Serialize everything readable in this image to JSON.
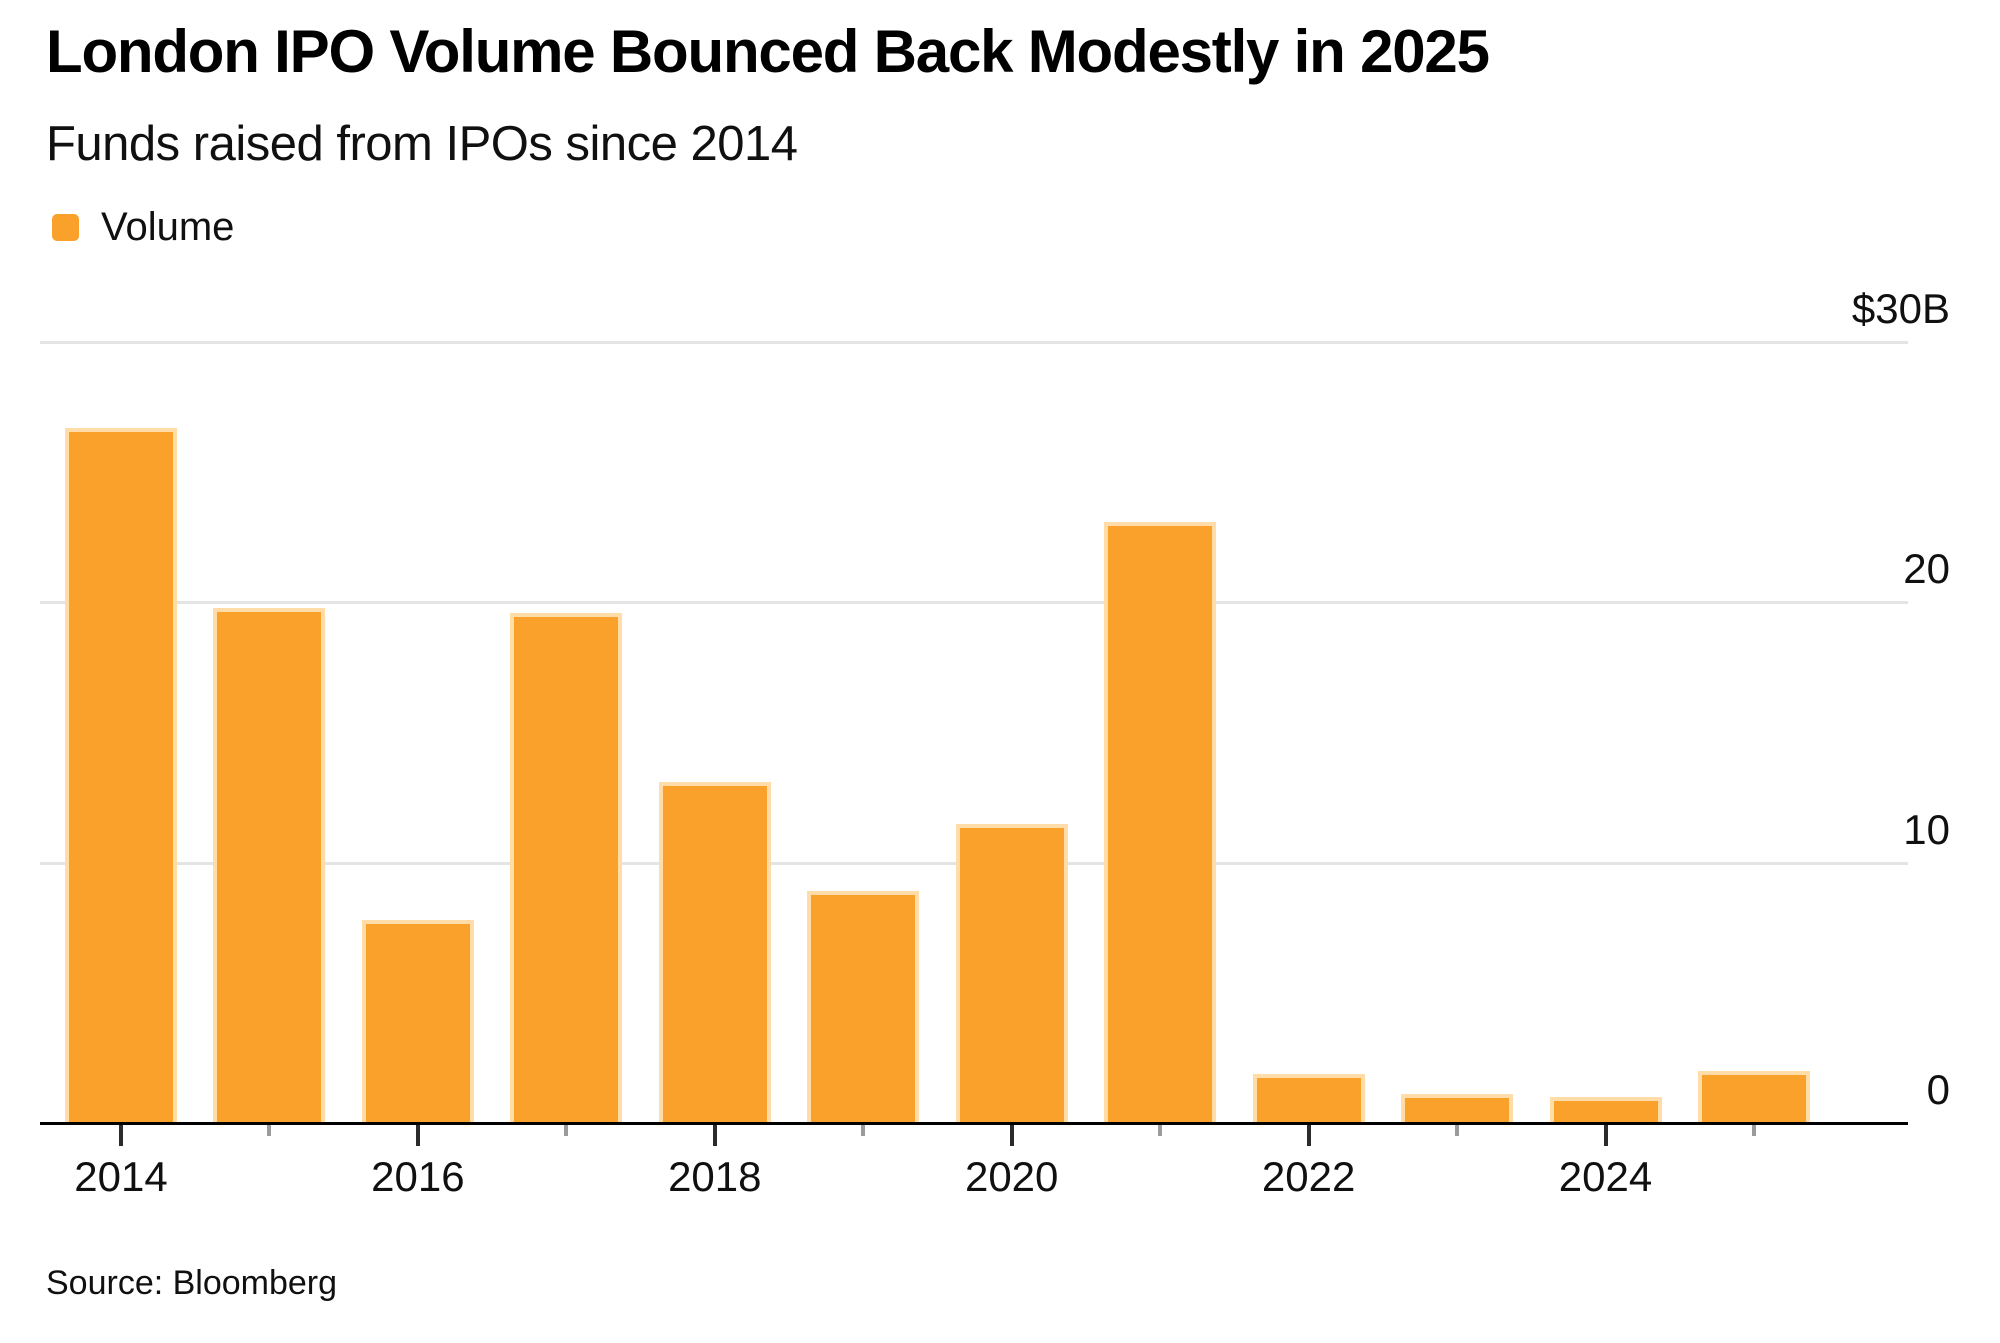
{
  "header": {
    "title": "London IPO Volume Bounced Back Modestly in 2025",
    "subtitle": "Funds raised from IPOs since 2014"
  },
  "legend": {
    "items": [
      {
        "label": "Volume",
        "color": "#FAA12C"
      }
    ]
  },
  "footer": {
    "source": "Source: Bloomberg"
  },
  "chart_data": {
    "type": "bar",
    "title": "London IPO Volume Bounced Back Modestly in 2025",
    "subtitle": "Funds raised from IPOs since 2014",
    "unit": "billions of US dollars",
    "categories": [
      "2014",
      "2015",
      "2016",
      "2017",
      "2018",
      "2019",
      "2020",
      "2021",
      "2022",
      "2023",
      "2024",
      "2025"
    ],
    "series": [
      {
        "name": "Volume",
        "values": [
          26.7,
          19.8,
          7.8,
          19.6,
          13.1,
          8.9,
          11.5,
          23.1,
          1.9,
          1.1,
          1.0,
          2.0
        ]
      }
    ],
    "ylim": [
      0,
      30
    ],
    "yticks": [
      {
        "value": 30,
        "label": "$30B"
      },
      {
        "value": 20,
        "label": "20"
      },
      {
        "value": 10,
        "label": "10"
      },
      {
        "value": 0,
        "label": "0"
      }
    ],
    "xticks_labeled": [
      "2014",
      "2016",
      "2018",
      "2020",
      "2022",
      "2024"
    ],
    "grid": "horizontal",
    "legend_position": "top-left",
    "axis_label_side": "right",
    "style": {
      "bar_color": "#FAA12C",
      "bar_edge_color": "#FFDCA8",
      "gridline_color": "#E4E4E4",
      "axis_color": "#000000",
      "major_tick_color": "#2B2B2B",
      "minor_tick_color": "#9B9B9B"
    }
  }
}
